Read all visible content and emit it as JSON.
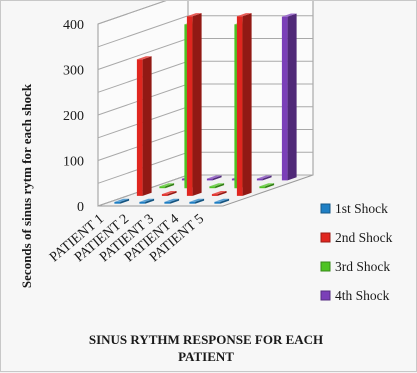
{
  "chart_data": {
    "type": "bar",
    "subtype": "3d-column",
    "categories": [
      "PATIENT 1",
      "PATIENT 2",
      "PATIENT 3",
      "PATIENT 4",
      "PATIENT 5"
    ],
    "series": [
      {
        "name": "1st Shock",
        "color": "#1f7fc4",
        "values": [
          0,
          0,
          0,
          0,
          0
        ]
      },
      {
        "name": "2nd Shock",
        "color": "#e0261f",
        "values": [
          300,
          0,
          395,
          0,
          395
        ]
      },
      {
        "name": "3rd Shock",
        "color": "#4ec322",
        "values": [
          0,
          360,
          0,
          360,
          0
        ]
      },
      {
        "name": "4th Shock",
        "color": "#7b3fb8",
        "values": [
          0,
          0,
          0,
          0,
          360
        ]
      }
    ],
    "xlabel": "SINUS RYTHM RESPONSE FOR EACH PATIENT",
    "ylabel": "Seconds of sinus rytm for each shock",
    "ylim": [
      0,
      400
    ],
    "yticks": [
      0,
      100,
      200,
      300,
      400
    ],
    "grid": true,
    "legend_position": "right"
  }
}
